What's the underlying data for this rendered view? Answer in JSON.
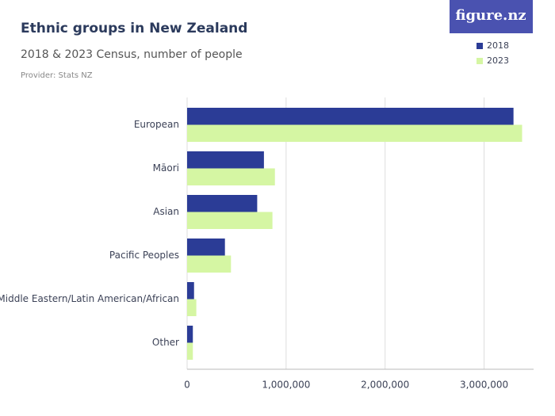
{
  "brand": "figure.nz",
  "chart_data": {
    "type": "hbar",
    "title": "Ethnic groups in New Zealand",
    "subtitle": "2018 & 2023 Census, number of people",
    "source": "Provider: Stats NZ",
    "categories": [
      "European",
      "Māori",
      "Asian",
      "Pacific Peoples",
      "Middle Eastern/Latin American/African",
      "Other"
    ],
    "series": [
      {
        "name": "2018",
        "color": "#2b3c96",
        "values": [
          3297000,
          776000,
          708000,
          382000,
          70000,
          58000
        ]
      },
      {
        "name": "2023",
        "color": "#d5f6a3",
        "values": [
          3384000,
          887000,
          862000,
          443000,
          93000,
          58000
        ]
      }
    ],
    "xlim": [
      0,
      3500000
    ],
    "xticks": [
      0,
      {
        "value": 1000000,
        "label": "1,000,000"
      },
      {
        "value": 2000000,
        "label": "2,000,000"
      },
      {
        "value": 3000000,
        "label": "3,000,000"
      }
    ],
    "grid": true,
    "legend": "top-right"
  }
}
